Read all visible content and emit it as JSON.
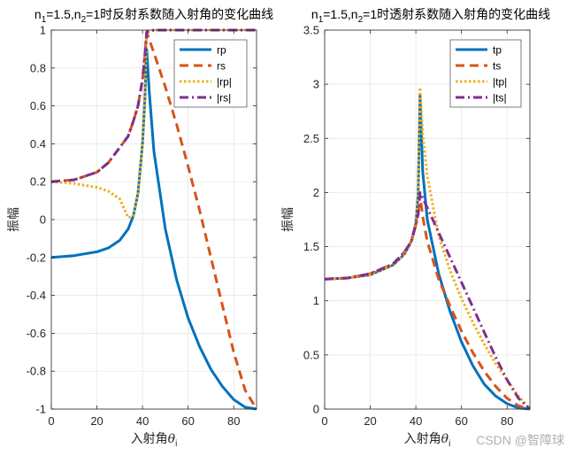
{
  "chart_data": [
    {
      "type": "line",
      "title": "n_1=1.5,n_2=1时反射系数随入射角的变化曲线",
      "title_parts": {
        "n1": "n",
        "n1_sub": "1",
        "mid": "=1.5,n",
        "n2_sub": "2",
        "tail": "=1时反射系数随入射角的变化曲线"
      },
      "xlabel": "入射角θ_i",
      "xlabel_parts": {
        "text": "入射角",
        "theta": "θ",
        "sub": "i"
      },
      "ylabel": "振幅",
      "xlim": [
        0,
        90
      ],
      "ylim": [
        -1,
        1
      ],
      "xticks": [
        0,
        20,
        40,
        60,
        80
      ],
      "yticks": [
        -1,
        -0.8,
        -0.6,
        -0.4,
        -0.2,
        0,
        0.2,
        0.4,
        0.6,
        0.8,
        1
      ],
      "ytick_labels": [
        "-1",
        "-0.8",
        "-0.6",
        "-0.4",
        "-0.2",
        "0",
        "0.2",
        "0.4",
        "0.6",
        "0.8",
        "1"
      ],
      "grid": true,
      "legend_position": "top-right",
      "series": [
        {
          "name": "rp",
          "color": "#0072BD",
          "style": "solid",
          "x": [
            0,
            10,
            20,
            25,
            30,
            33.7,
            36,
            38,
            40,
            41,
            41.8,
            43,
            45,
            50,
            55,
            60,
            65,
            70,
            75,
            80,
            85,
            90
          ],
          "y": [
            -0.2,
            -0.19,
            -0.17,
            -0.15,
            -0.11,
            -0.05,
            0.02,
            0.14,
            0.4,
            0.63,
            0.9,
            0.67,
            0.36,
            -0.05,
            -0.32,
            -0.52,
            -0.67,
            -0.79,
            -0.88,
            -0.95,
            -0.99,
            -1
          ]
        },
        {
          "name": "rs",
          "color": "#D95319",
          "style": "dashed",
          "x": [
            0,
            10,
            20,
            25,
            30,
            33.7,
            36,
            38,
            40,
            41,
            41.8,
            45,
            50,
            55,
            60,
            65,
            70,
            75,
            80,
            85,
            90
          ],
          "y": [
            0.2,
            0.21,
            0.25,
            0.3,
            0.38,
            0.44,
            0.52,
            0.6,
            0.74,
            0.86,
            0.99,
            0.88,
            0.7,
            0.5,
            0.28,
            0.05,
            -0.2,
            -0.45,
            -0.7,
            -0.9,
            -1
          ]
        },
        {
          "name": "|rp|",
          "color": "#EDB120",
          "style": "dotted",
          "x": [
            0,
            10,
            20,
            25,
            30,
            33.7,
            36,
            38,
            40,
            41,
            41.8,
            45,
            50,
            60,
            70,
            80,
            90
          ],
          "y": [
            0.2,
            0.19,
            0.17,
            0.15,
            0.11,
            0.01,
            0.02,
            0.14,
            0.4,
            0.63,
            0.99,
            1,
            1,
            1,
            1,
            1,
            1
          ]
        },
        {
          "name": "|rs|",
          "color": "#7E2F8E",
          "style": "dashdot",
          "x": [
            0,
            10,
            20,
            25,
            30,
            33.7,
            36,
            38,
            40,
            41,
            41.8,
            45,
            50,
            60,
            70,
            80,
            90
          ],
          "y": [
            0.2,
            0.21,
            0.25,
            0.3,
            0.38,
            0.44,
            0.52,
            0.6,
            0.74,
            0.86,
            0.99,
            1,
            1,
            1,
            1,
            1,
            1
          ]
        }
      ]
    },
    {
      "type": "line",
      "title": "n_1=1.5,n_2=1时透射系数随入射角的变化曲线",
      "title_parts": {
        "n1": "n",
        "n1_sub": "1",
        "mid": "=1.5,n",
        "n2_sub": "2",
        "tail": "=1时透射系数随入射角的变化曲线"
      },
      "xlabel": "入射角θ_i",
      "xlabel_parts": {
        "text": "入射角",
        "theta": "θ",
        "sub": "i"
      },
      "ylabel": "振幅",
      "xlim": [
        0,
        90
      ],
      "ylim": [
        0,
        3.5
      ],
      "xticks": [
        0,
        20,
        40,
        60,
        80
      ],
      "yticks": [
        0,
        0.5,
        1,
        1.5,
        2,
        2.5,
        3,
        3.5
      ],
      "ytick_labels": [
        "0",
        "0.5",
        "1",
        "1.5",
        "2",
        "2.5",
        "3",
        "3.5"
      ],
      "grid": true,
      "legend_position": "top-right",
      "series": [
        {
          "name": "tp",
          "color": "#0072BD",
          "style": "solid",
          "x": [
            0,
            10,
            20,
            30,
            35,
            38,
            40,
            41,
            41.8,
            43,
            45,
            50,
            55,
            60,
            65,
            70,
            75,
            80,
            85,
            90
          ],
          "y": [
            1.2,
            1.21,
            1.24,
            1.33,
            1.43,
            1.55,
            1.72,
            1.98,
            2.9,
            2.2,
            1.75,
            1.25,
            0.9,
            0.62,
            0.4,
            0.23,
            0.12,
            0.05,
            0.01,
            0
          ]
        },
        {
          "name": "ts",
          "color": "#D95319",
          "style": "dashed",
          "x": [
            0,
            10,
            20,
            30,
            35,
            38,
            40,
            41,
            41.8,
            43,
            45,
            50,
            55,
            60,
            65,
            70,
            75,
            80,
            85,
            90
          ],
          "y": [
            1.2,
            1.21,
            1.25,
            1.34,
            1.45,
            1.55,
            1.7,
            1.8,
            1.98,
            1.78,
            1.55,
            1.2,
            0.95,
            0.72,
            0.52,
            0.35,
            0.21,
            0.1,
            0.03,
            0
          ]
        },
        {
          "name": "|tp|",
          "color": "#EDB120",
          "style": "dotted",
          "x": [
            0,
            10,
            20,
            30,
            35,
            38,
            40,
            41,
            41.8,
            43,
            45,
            50,
            55,
            60,
            65,
            70,
            75,
            80,
            85,
            90
          ],
          "y": [
            1.2,
            1.21,
            1.24,
            1.33,
            1.43,
            1.55,
            1.72,
            1.98,
            2.97,
            2.55,
            2.15,
            1.6,
            1.28,
            1.02,
            0.8,
            0.6,
            0.42,
            0.27,
            0.12,
            0
          ]
        },
        {
          "name": "|ts|",
          "color": "#7E2F8E",
          "style": "dashdot",
          "x": [
            0,
            10,
            20,
            30,
            35,
            38,
            40,
            41,
            41.8,
            43,
            45,
            50,
            55,
            60,
            65,
            70,
            75,
            80,
            85,
            90
          ],
          "y": [
            1.2,
            1.21,
            1.25,
            1.34,
            1.45,
            1.55,
            1.7,
            1.8,
            2.0,
            1.95,
            1.86,
            1.63,
            1.4,
            1.17,
            0.94,
            0.71,
            0.48,
            0.27,
            0.1,
            0
          ]
        }
      ]
    }
  ],
  "watermark": "CSDN @智障球"
}
